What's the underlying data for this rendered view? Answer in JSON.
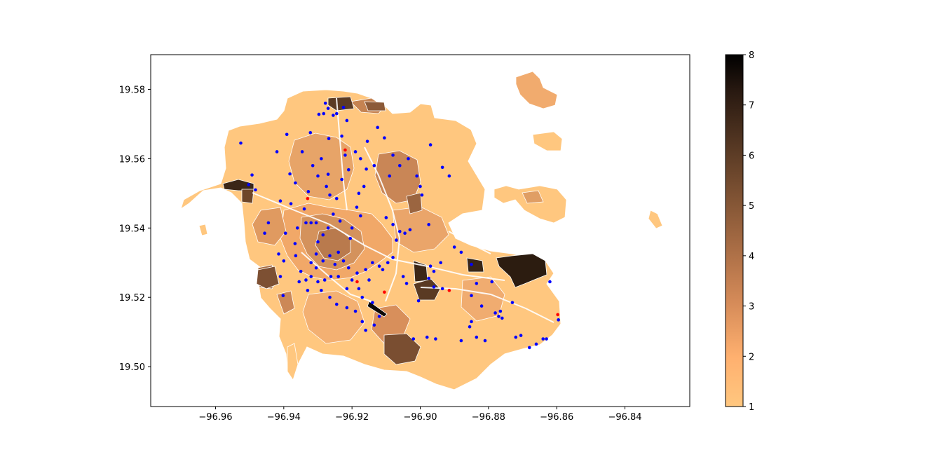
{
  "chart_data": {
    "type": "scatter",
    "title": "",
    "xlabel": "",
    "ylabel": "",
    "xlim": [
      -96.979,
      -96.821
    ],
    "ylim": [
      19.4885,
      19.59
    ],
    "x_ticks": [
      -96.96,
      -96.94,
      -96.92,
      -96.9,
      -96.88,
      -96.86,
      -96.84
    ],
    "x_tick_labels": [
      "−96.96",
      "−96.94",
      "−96.92",
      "−96.90",
      "−96.88",
      "−96.86",
      "−96.84"
    ],
    "y_ticks": [
      19.5,
      19.52,
      19.54,
      19.56,
      19.58
    ],
    "y_tick_labels": [
      "19.50",
      "19.52",
      "19.54",
      "19.56",
      "19.58"
    ],
    "grid": false,
    "legend": "none",
    "colorbar": {
      "range": [
        1,
        8
      ],
      "ticks": [
        1,
        2,
        3,
        4,
        5,
        6,
        7,
        8
      ],
      "tick_labels": [
        "1",
        "2",
        "3",
        "4",
        "5",
        "6",
        "7",
        "8"
      ],
      "colormap": "copper_r",
      "colors": [
        "#ffc77f",
        "#000000"
      ]
    },
    "choropleth_note_color_low": "#ffc77f",
    "series": [
      {
        "color": "#0000ff",
        "points": [
          [
            -96.9526,
            19.5645
          ],
          [
            -96.9493,
            19.5553
          ],
          [
            -96.9483,
            19.551
          ],
          [
            -96.9503,
            19.5525
          ],
          [
            -96.942,
            19.562
          ],
          [
            -96.9391,
            19.567
          ],
          [
            -96.9382,
            19.5556
          ],
          [
            -96.9346,
            19.562
          ],
          [
            -96.9366,
            19.553
          ],
          [
            -96.9379,
            19.547
          ],
          [
            -96.941,
            19.5478
          ],
          [
            -96.9445,
            19.5415
          ],
          [
            -96.9456,
            19.5385
          ],
          [
            -96.9395,
            19.5385
          ],
          [
            -96.936,
            19.54
          ],
          [
            -96.9367,
            19.5355
          ],
          [
            -96.9365,
            19.532
          ],
          [
            -96.94,
            19.5305
          ],
          [
            -96.9415,
            19.5325
          ],
          [
            -96.941,
            19.526
          ],
          [
            -96.9402,
            19.5205
          ],
          [
            -96.934,
            19.5455
          ],
          [
            -96.9328,
            19.5505
          ],
          [
            -96.9315,
            19.558
          ],
          [
            -96.93,
            19.555
          ],
          [
            -96.9322,
            19.5675
          ],
          [
            -96.9297,
            19.5728
          ],
          [
            -96.9283,
            19.573
          ],
          [
            -96.9278,
            19.576
          ],
          [
            -96.927,
            19.5745
          ],
          [
            -96.9255,
            19.5725
          ],
          [
            -96.9245,
            19.573
          ],
          [
            -96.9225,
            19.5748
          ],
          [
            -96.9215,
            19.571
          ],
          [
            -96.923,
            19.5665
          ],
          [
            -96.9268,
            19.5658
          ],
          [
            -96.929,
            19.56
          ],
          [
            -96.927,
            19.5555
          ],
          [
            -96.9275,
            19.552
          ],
          [
            -96.9265,
            19.5495
          ],
          [
            -96.9245,
            19.5485
          ],
          [
            -96.923,
            19.554
          ],
          [
            -96.921,
            19.5568
          ],
          [
            -96.919,
            19.562
          ],
          [
            -96.922,
            19.561
          ],
          [
            -96.9175,
            19.56
          ],
          [
            -96.9165,
            19.552
          ],
          [
            -96.9158,
            19.557
          ],
          [
            -96.918,
            19.55
          ],
          [
            -96.9186,
            19.546
          ],
          [
            -96.9175,
            19.5435
          ],
          [
            -96.92,
            19.54
          ],
          [
            -96.9205,
            19.537
          ],
          [
            -96.9235,
            19.542
          ],
          [
            -96.9255,
            19.544
          ],
          [
            -96.927,
            19.54
          ],
          [
            -96.9285,
            19.538
          ],
          [
            -96.93,
            19.536
          ],
          [
            -96.9305,
            19.5415
          ],
          [
            -96.932,
            19.5415
          ],
          [
            -96.9335,
            19.5415
          ],
          [
            -96.9305,
            19.5325
          ],
          [
            -96.932,
            19.53
          ],
          [
            -96.9305,
            19.5285
          ],
          [
            -96.9285,
            19.5305
          ],
          [
            -96.9265,
            19.532
          ],
          [
            -96.925,
            19.5295
          ],
          [
            -96.924,
            19.533
          ],
          [
            -96.9225,
            19.5305
          ],
          [
            -96.921,
            19.5285
          ],
          [
            -96.92,
            19.525
          ],
          [
            -96.9185,
            19.527
          ],
          [
            -96.916,
            19.528
          ],
          [
            -96.914,
            19.53
          ],
          [
            -96.912,
            19.529
          ],
          [
            -96.915,
            19.525
          ],
          [
            -96.918,
            19.5225
          ],
          [
            -96.917,
            19.52
          ],
          [
            -96.9215,
            19.5225
          ],
          [
            -96.924,
            19.526
          ],
          [
            -96.9262,
            19.526
          ],
          [
            -96.928,
            19.525
          ],
          [
            -96.93,
            19.5245
          ],
          [
            -96.932,
            19.526
          ],
          [
            -96.9335,
            19.525
          ],
          [
            -96.9355,
            19.5245
          ],
          [
            -96.935,
            19.5275
          ],
          [
            -96.933,
            19.522
          ],
          [
            -96.929,
            19.522
          ],
          [
            -96.9265,
            19.52
          ],
          [
            -96.9245,
            19.518
          ],
          [
            -96.9215,
            19.517
          ],
          [
            -96.919,
            19.516
          ],
          [
            -96.917,
            19.513
          ],
          [
            -96.916,
            19.5105
          ],
          [
            -96.914,
            19.5185
          ],
          [
            -96.9135,
            19.512
          ],
          [
            -96.912,
            19.5145
          ],
          [
            -96.911,
            19.528
          ],
          [
            -96.9095,
            19.53
          ],
          [
            -96.908,
            19.5315
          ],
          [
            -96.907,
            19.5365
          ],
          [
            -96.906,
            19.539
          ],
          [
            -96.9045,
            19.5385
          ],
          [
            -96.903,
            19.5395
          ],
          [
            -96.908,
            19.541
          ],
          [
            -96.91,
            19.543
          ],
          [
            -96.909,
            19.555
          ],
          [
            -96.908,
            19.561
          ],
          [
            -96.906,
            19.558
          ],
          [
            -96.9035,
            19.56
          ],
          [
            -96.901,
            19.555
          ],
          [
            -96.8995,
            19.5495
          ],
          [
            -96.9,
            19.552
          ],
          [
            -96.8975,
            19.541
          ],
          [
            -96.897,
            19.529
          ],
          [
            -96.8975,
            19.5255
          ],
          [
            -96.896,
            19.5275
          ],
          [
            -96.894,
            19.53
          ],
          [
            -96.896,
            19.523
          ],
          [
            -96.8935,
            19.5225
          ],
          [
            -96.89,
            19.5345
          ],
          [
            -96.888,
            19.533
          ],
          [
            -96.885,
            19.5295
          ],
          [
            -96.8835,
            19.524
          ],
          [
            -96.885,
            19.5205
          ],
          [
            -96.882,
            19.5175
          ],
          [
            -96.879,
            19.5245
          ],
          [
            -96.877,
            19.5145
          ],
          [
            -96.8765,
            19.516
          ],
          [
            -96.876,
            19.514
          ],
          [
            -96.878,
            19.5155
          ],
          [
            -96.873,
            19.5185
          ],
          [
            -96.872,
            19.5085
          ],
          [
            -96.8705,
            19.509
          ],
          [
            -96.868,
            19.5055
          ],
          [
            -96.866,
            19.5065
          ],
          [
            -96.864,
            19.508
          ],
          [
            -96.863,
            19.508
          ],
          [
            -96.8595,
            19.5135
          ],
          [
            -96.862,
            19.5245
          ],
          [
            -96.8855,
            19.5115
          ],
          [
            -96.885,
            19.513
          ],
          [
            -96.8835,
            19.5085
          ],
          [
            -96.881,
            19.5075
          ],
          [
            -96.888,
            19.5075
          ],
          [
            -96.8955,
            19.508
          ],
          [
            -96.898,
            19.5085
          ],
          [
            -96.902,
            19.508
          ],
          [
            -96.905,
            19.526
          ],
          [
            -96.904,
            19.524
          ],
          [
            -96.9005,
            19.519
          ],
          [
            -96.8915,
            19.555
          ],
          [
            -96.8935,
            19.5575
          ],
          [
            -96.897,
            19.564
          ],
          [
            -96.9105,
            19.566
          ],
          [
            -96.9125,
            19.569
          ],
          [
            -96.9135,
            19.558
          ],
          [
            -96.9155,
            19.565
          ]
        ]
      },
      {
        "color": "#ff0000",
        "points": [
          [
            -96.933,
            19.5485
          ],
          [
            -96.9185,
            19.5245
          ],
          [
            -96.8915,
            19.522
          ],
          [
            -96.8597,
            19.515
          ],
          [
            -96.9105,
            19.5215
          ],
          [
            -96.922,
            19.5625
          ]
        ]
      }
    ]
  },
  "map": {
    "district_colors": [
      "#ffc77f",
      "#f7b876",
      "#eaa96c",
      "#d69c64",
      "#b98154",
      "#8f5c3a",
      "#5e3c26",
      "#30200f",
      "#120a04"
    ],
    "background": "#ffffff",
    "edge": "#ffffff"
  }
}
